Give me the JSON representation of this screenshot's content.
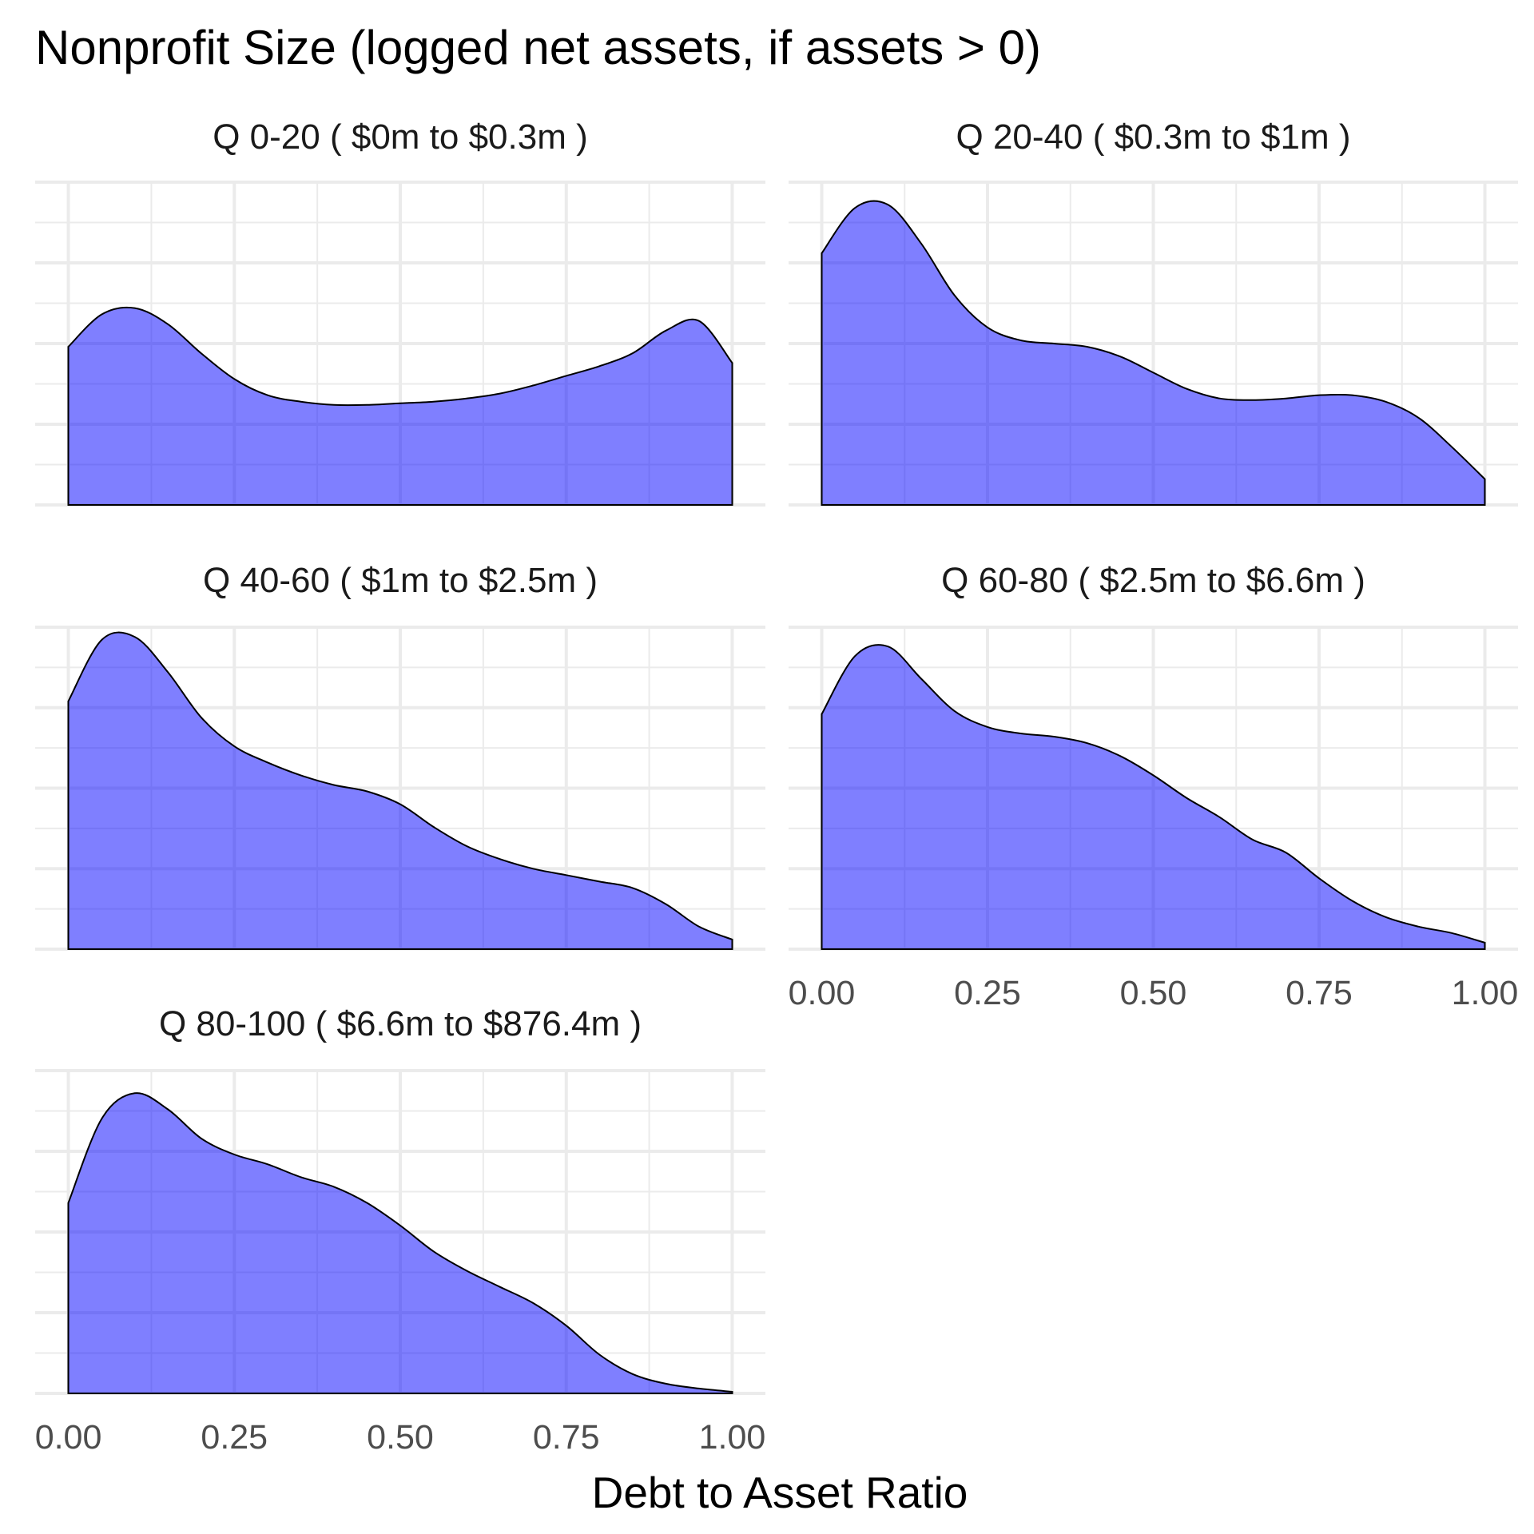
{
  "chart_data": {
    "type": "area",
    "title": "Nonprofit Size (logged net assets, if assets > 0)",
    "xlabel": "Debt to Asset Ratio",
    "ylabel": "",
    "xlim": [
      -0.05,
      1.05
    ],
    "ylim": [
      0,
      1
    ],
    "x_ticks": [
      "0.00",
      "0.25",
      "0.50",
      "0.75",
      "1.00"
    ],
    "y_ticks_shown": false,
    "grid": true,
    "fill_color": "#0000ff",
    "fill_opacity": 0.5,
    "line_color": "#000000",
    "x": [
      0.0,
      0.05,
      0.1,
      0.15,
      0.2,
      0.25,
      0.3,
      0.35,
      0.4,
      0.45,
      0.5,
      0.55,
      0.6,
      0.65,
      0.7,
      0.75,
      0.8,
      0.85,
      0.9,
      0.95,
      1.0
    ],
    "panels": [
      {
        "label": "Q 0-20",
        "range": "( $0m to $0.3m )",
        "values": [
          0.49,
          0.59,
          0.61,
          0.56,
          0.47,
          0.39,
          0.34,
          0.32,
          0.31,
          0.31,
          0.315,
          0.32,
          0.33,
          0.345,
          0.37,
          0.4,
          0.43,
          0.47,
          0.54,
          0.57,
          0.44
        ]
      },
      {
        "label": "Q 20-40",
        "range": "( $0.3m to $1m )",
        "values": [
          0.78,
          0.92,
          0.93,
          0.81,
          0.65,
          0.55,
          0.51,
          0.5,
          0.49,
          0.46,
          0.41,
          0.36,
          0.33,
          0.325,
          0.33,
          0.34,
          0.34,
          0.32,
          0.27,
          0.18,
          0.08
        ]
      },
      {
        "label": "Q 40-60",
        "range": "( $1m to $2.5m )",
        "values": [
          0.77,
          0.96,
          0.97,
          0.86,
          0.72,
          0.63,
          0.58,
          0.54,
          0.51,
          0.49,
          0.45,
          0.38,
          0.32,
          0.28,
          0.25,
          0.23,
          0.21,
          0.19,
          0.14,
          0.07,
          0.03
        ]
      },
      {
        "label": "Q 60-80",
        "range": "( $2.5m to $6.6m )",
        "values": [
          0.73,
          0.91,
          0.94,
          0.84,
          0.74,
          0.69,
          0.67,
          0.66,
          0.64,
          0.6,
          0.54,
          0.47,
          0.41,
          0.34,
          0.3,
          0.22,
          0.15,
          0.1,
          0.07,
          0.05,
          0.02
        ]
      },
      {
        "label": "Q 80-100",
        "range": "( $6.6m to $876.4m )",
        "values": [
          0.59,
          0.85,
          0.93,
          0.88,
          0.79,
          0.74,
          0.71,
          0.67,
          0.64,
          0.59,
          0.52,
          0.44,
          0.38,
          0.33,
          0.28,
          0.21,
          0.12,
          0.06,
          0.03,
          0.015,
          0.005
        ]
      }
    ]
  }
}
